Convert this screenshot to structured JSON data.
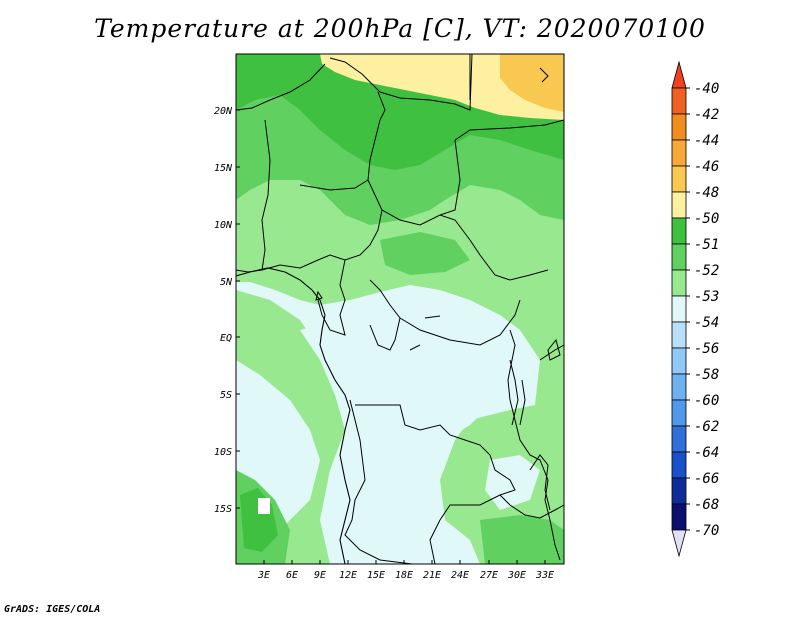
{
  "title": "Temperature at 200hPa [C], VT: 2020070100",
  "lat_labels": [
    "20N",
    "15N",
    "10N",
    "5N",
    "EQ",
    "5S",
    "10S",
    "15S"
  ],
  "lon_labels": [
    "3E",
    "6E",
    "9E",
    "12E",
    "15E",
    "18E",
    "21E",
    "24E",
    "27E",
    "30E",
    "33E"
  ],
  "legend": {
    "colors": [
      "#f04020",
      "#f06020",
      "#f08c20",
      "#f8a838",
      "#f8c850",
      "#fdf0a0",
      "#40c040",
      "#60d060",
      "#98e890",
      "#e0f8f8",
      "#b8e0f8",
      "#90c8f8",
      "#6eb0f0",
      "#5098e8",
      "#3070d8",
      "#1a50c8",
      "#102c98",
      "#0a1070",
      "#e0e0f8"
    ],
    "labels": [
      "-40",
      "-42",
      "-44",
      "-46",
      "-48",
      "-50",
      "-51",
      "-52",
      "-53",
      "-54",
      "-56",
      "-58",
      "-60",
      "-62",
      "-64",
      "-66",
      "-68",
      "-70"
    ]
  },
  "credit": "GrADS: IGES/COLA"
}
